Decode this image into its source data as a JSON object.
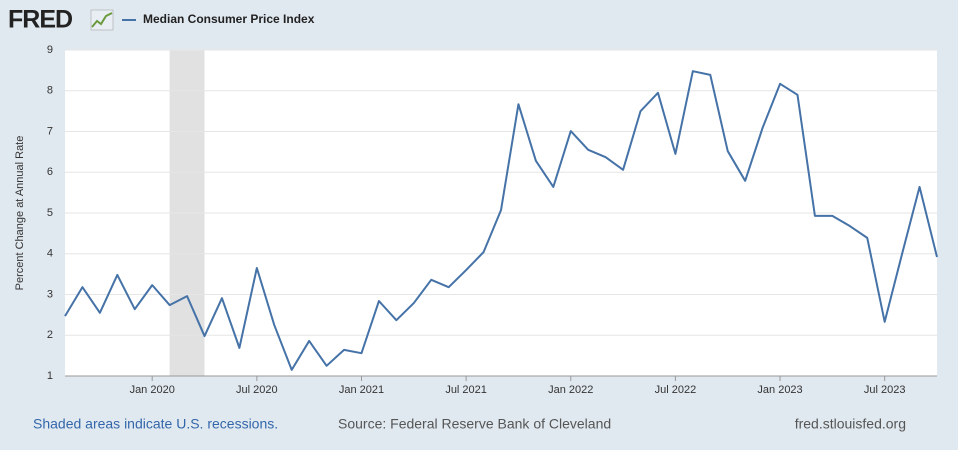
{
  "chart_data": {
    "type": "line",
    "logo": "FRED",
    "ylabel": "Percent Change at Annual Rate",
    "notes": [
      "Shaded areas indicate U.S. recessions.",
      "Source: Federal Reserve Bank of Cleveland",
      "fred.stlouisfed.org"
    ],
    "x": [
      "2019-08",
      "2019-09",
      "2019-10",
      "2019-11",
      "2019-12",
      "2020-01",
      "2020-02",
      "2020-03",
      "2020-04",
      "2020-05",
      "2020-06",
      "2020-07",
      "2020-08",
      "2020-09",
      "2020-10",
      "2020-11",
      "2020-12",
      "2021-01",
      "2021-02",
      "2021-03",
      "2021-04",
      "2021-05",
      "2021-06",
      "2021-07",
      "2021-08",
      "2021-09",
      "2021-10",
      "2021-11",
      "2021-12",
      "2022-01",
      "2022-02",
      "2022-03",
      "2022-04",
      "2022-05",
      "2022-06",
      "2022-07",
      "2022-08",
      "2022-09",
      "2022-10",
      "2022-11",
      "2022-12",
      "2023-01",
      "2023-02",
      "2023-03",
      "2023-04",
      "2023-05",
      "2023-06",
      "2023-07",
      "2023-08",
      "2023-09",
      "2023-10"
    ],
    "series": [
      {
        "name": "Median Consumer Price Index",
        "color": "#4572a7",
        "values": [
          2.47,
          3.18,
          2.55,
          3.48,
          2.64,
          3.23,
          2.74,
          2.96,
          1.98,
          2.91,
          1.69,
          3.65,
          2.25,
          1.15,
          1.86,
          1.25,
          1.64,
          1.56,
          2.84,
          2.37,
          2.79,
          3.36,
          3.18,
          3.6,
          4.04,
          5.07,
          7.67,
          6.28,
          5.64,
          7.01,
          6.55,
          6.37,
          6.06,
          7.5,
          7.95,
          6.45,
          8.48,
          8.39,
          6.52,
          5.79,
          7.09,
          8.17,
          7.9,
          4.93,
          4.93,
          4.68,
          4.39,
          2.33,
          4.0,
          5.64,
          3.92
        ]
      }
    ],
    "recessions": [
      {
        "start": "2020-02",
        "end": "2020-04"
      }
    ],
    "xlim": [
      "2019-08",
      "2023-10"
    ],
    "xticks": [
      {
        "value": "2020-01",
        "label": "Jan 2020"
      },
      {
        "value": "2020-07",
        "label": "Jul 2020"
      },
      {
        "value": "2021-01",
        "label": "Jan 2021"
      },
      {
        "value": "2021-07",
        "label": "Jul 2021"
      },
      {
        "value": "2022-01",
        "label": "Jan 2022"
      },
      {
        "value": "2022-07",
        "label": "Jul 2022"
      },
      {
        "value": "2023-01",
        "label": "Jan 2023"
      },
      {
        "value": "2023-07",
        "label": "Jul 2023"
      }
    ],
    "ylim": [
      1,
      9
    ],
    "yticks": [
      1,
      2,
      3,
      4,
      5,
      6,
      7,
      8,
      9
    ],
    "grid": true
  }
}
